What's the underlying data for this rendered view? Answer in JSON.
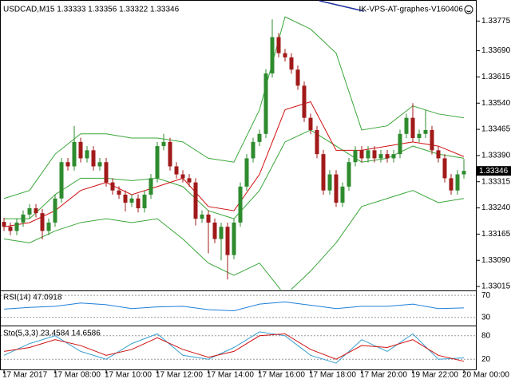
{
  "chart_data": {
    "type": "candlestick",
    "title": "USDCAD,M15  1.33333 1.33356 1.33322 1.33346",
    "watermark": "IK-VPS-AT-graphes-V160406",
    "categories": [
      "17 Mar 2017",
      null,
      null,
      null,
      null,
      null,
      null,
      null,
      "17 Mar 08:00",
      null,
      null,
      null,
      null,
      null,
      null,
      null,
      "17 Mar 10:00",
      null,
      null,
      null,
      null,
      null,
      null,
      null,
      "17 Mar 12:00",
      null,
      null,
      null,
      null,
      null,
      null,
      null,
      "17 Mar 14:00",
      null,
      null,
      null,
      null,
      null,
      null,
      null,
      "17 Mar 16:00",
      null,
      null,
      null,
      null,
      null,
      null,
      null,
      "17 Mar 18:00",
      null,
      null,
      null,
      null,
      null,
      null,
      null,
      "17 Mar 20:00",
      null,
      null,
      null,
      null,
      null,
      null,
      null,
      "19 Mar 22:00",
      null,
      null,
      null,
      null,
      null,
      null,
      null,
      "20 Mar 00:00"
    ],
    "open": [
      1.332,
      1.33186,
      1.33174,
      1.33198,
      1.33221,
      1.33239,
      1.33225,
      1.33174,
      1.33198,
      1.33267,
      1.33371,
      1.33359,
      1.33429,
      1.33382,
      1.33405,
      1.33359,
      1.33371,
      1.33313,
      1.3329,
      1.33278,
      1.33255,
      1.33267,
      1.33239,
      1.33278,
      1.33325,
      1.33417,
      1.33429,
      1.33359,
      1.33336,
      1.33325,
      1.33313,
      1.33209,
      1.33221,
      1.33198,
      1.33151,
      1.33186,
      1.33105,
      1.33198,
      1.33301,
      1.33382,
      1.33429,
      1.33452,
      1.33625,
      1.33729,
      1.33683,
      1.33671,
      1.33636,
      1.3359,
      1.33498,
      1.33463,
      1.33394,
      1.3329,
      1.33336,
      1.33255,
      1.33301,
      1.33371,
      1.33405,
      1.33382,
      1.33405,
      1.33382,
      1.33394,
      1.33382,
      1.33394,
      1.33452,
      1.33498,
      1.3344,
      1.33452,
      1.33463,
      1.33405,
      1.33382,
      1.33325,
      1.3329,
      1.33336
    ],
    "high": [
      1.33212,
      1.33198,
      1.3321,
      1.33233,
      1.33251,
      1.33251,
      1.33237,
      1.3321,
      1.33279,
      1.33383,
      1.33383,
      1.33475,
      1.33441,
      1.33417,
      1.33417,
      1.33383,
      1.33383,
      1.33325,
      1.33302,
      1.3329,
      1.33279,
      1.33279,
      1.3329,
      1.33337,
      1.33429,
      1.33452,
      1.33441,
      1.33371,
      1.33348,
      1.33337,
      1.33325,
      1.33233,
      1.33233,
      1.3321,
      1.33198,
      1.33198,
      1.3321,
      1.33313,
      1.33394,
      1.33441,
      1.33464,
      1.33637,
      1.3378,
      1.33741,
      1.33695,
      1.33683,
      1.33648,
      1.33602,
      1.3351,
      1.33475,
      1.33406,
      1.33348,
      1.33348,
      1.33313,
      1.33383,
      1.33417,
      1.33417,
      1.33417,
      1.33417,
      1.33406,
      1.33406,
      1.33406,
      1.33464,
      1.3351,
      1.3354,
      1.33464,
      1.3352,
      1.33475,
      1.33417,
      1.33394,
      1.33337,
      1.33348,
      1.3338
    ],
    "low": [
      1.33174,
      1.33162,
      1.33162,
      1.33186,
      1.33209,
      1.33213,
      1.3315,
      1.33162,
      1.33186,
      1.33255,
      1.33347,
      1.33347,
      1.3337,
      1.3337,
      1.33347,
      1.33347,
      1.33301,
      1.33278,
      1.33266,
      1.3323,
      1.33243,
      1.33227,
      1.33227,
      1.33266,
      1.33313,
      1.33405,
      1.33347,
      1.33324,
      1.33313,
      1.33301,
      1.3319,
      1.33197,
      1.3311,
      1.33139,
      1.3309,
      1.33035,
      1.33093,
      1.33186,
      1.33289,
      1.3337,
      1.33417,
      1.3344,
      1.33613,
      1.33671,
      1.33659,
      1.33624,
      1.33578,
      1.33486,
      1.33451,
      1.33382,
      1.33278,
      1.33278,
      1.33243,
      1.33243,
      1.33289,
      1.33359,
      1.3337,
      1.3337,
      1.3337,
      1.3337,
      1.3337,
      1.3337,
      1.33382,
      1.3344,
      1.33428,
      1.33428,
      1.3344,
      1.33393,
      1.3337,
      1.33313,
      1.33278,
      1.33278,
      1.33324
    ],
    "close": [
      1.33186,
      1.33174,
      1.33198,
      1.33221,
      1.33239,
      1.33225,
      1.33174,
      1.33198,
      1.33267,
      1.33371,
      1.33359,
      1.33429,
      1.33382,
      1.33405,
      1.33359,
      1.33371,
      1.33313,
      1.3329,
      1.33278,
      1.33255,
      1.33267,
      1.33239,
      1.33278,
      1.33325,
      1.33417,
      1.33429,
      1.33359,
      1.33336,
      1.33325,
      1.33313,
      1.33209,
      1.33221,
      1.33198,
      1.33151,
      1.33186,
      1.33105,
      1.33198,
      1.33301,
      1.33382,
      1.33429,
      1.33452,
      1.33625,
      1.33729,
      1.33683,
      1.33671,
      1.33636,
      1.3359,
      1.33498,
      1.33463,
      1.33394,
      1.3329,
      1.33336,
      1.33255,
      1.33301,
      1.33371,
      1.33405,
      1.33382,
      1.33405,
      1.33382,
      1.33394,
      1.33382,
      1.33394,
      1.33452,
      1.33498,
      1.3344,
      1.33452,
      1.33463,
      1.33405,
      1.33382,
      1.33325,
      1.3329,
      1.33336,
      1.33346
    ],
    "up_color": "#2e8b2e",
    "down_color": "#a11a1a",
    "ylim": [
      1.33006,
      1.33833
    ],
    "yticks": [
      1.33775,
      {
        "value": 1.3369,
        "label": "1.33690"
      },
      1.33615,
      {
        "value": 1.3354,
        "label": "1.33540"
      },
      1.33465,
      {
        "value": 1.3339,
        "label": "1.33390"
      },
      1.33315,
      {
        "value": 1.3324,
        "label": "1.33240"
      },
      1.33165,
      {
        "value": 1.3309,
        "label": "1.33090"
      },
      1.33015
    ],
    "last_price": 1.33346,
    "overlay_x": [
      0,
      4,
      8,
      12,
      16,
      20,
      24,
      28,
      32,
      36,
      40,
      44,
      48,
      52,
      56,
      60,
      64,
      68,
      72
    ],
    "overlays": [
      {
        "color": "#3aa63a",
        "values": [
          1.33267,
          1.3329,
          1.33394,
          1.33452,
          1.33452,
          1.3344,
          1.3344,
          1.33429,
          1.33382,
          1.33371,
          1.33521,
          1.33787,
          1.33752,
          1.33683,
          1.33463,
          1.33475,
          1.33532,
          1.33509,
          1.33498
        ]
      },
      {
        "color": "#3aa63a",
        "values": [
          1.33209,
          1.33209,
          1.33278,
          1.33325,
          1.33325,
          1.33318,
          1.33325,
          1.33301,
          1.33232,
          1.33209,
          1.3329,
          1.33429,
          1.33463,
          1.33417,
          1.33371,
          1.33382,
          1.33417,
          1.33394,
          1.33382
        ]
      },
      {
        "color": "#3aa63a",
        "values": [
          1.33151,
          1.3314,
          1.33174,
          1.33198,
          1.33209,
          1.33198,
          1.33209,
          1.33151,
          1.33082,
          1.33047,
          1.33082,
          1.3299,
          1.33059,
          1.3314,
          1.33244,
          1.33267,
          1.3329,
          1.33255,
          1.33267
        ]
      },
      {
        "color": "#d01010",
        "values": [
          1.33186,
          1.33198,
          1.33232,
          1.3329,
          1.33313,
          1.33278,
          1.33301,
          1.33325,
          1.33244,
          1.33232,
          1.33336,
          1.33521,
          1.33544,
          1.33405,
          1.33405,
          1.33417,
          1.33429,
          1.33417,
          1.33387
        ]
      }
    ],
    "panels": [
      {
        "type": "line",
        "title": "RSI(14) 47.0918",
        "ylim": [
          18,
          76
        ],
        "yticks": [
          70,
          30
        ],
        "series": [
          {
            "color": "#1e7fd8",
            "values": [
              45,
              48,
              50,
              56,
              53,
              46,
              49,
              50,
              44,
              42,
              54,
              58,
              52,
              46,
              50,
              50,
              54,
              46,
              47.0918
            ]
          }
        ]
      },
      {
        "type": "line",
        "title": "Sto(5,3,3) 23.4584 14.6586",
        "ylim": [
          0,
          100
        ],
        "yticks": [
          80,
          20
        ],
        "series": [
          {
            "color": "#3aa0d0",
            "values": [
              30,
              60,
              80,
              40,
              20,
              60,
              85,
              30,
              20,
              50,
              90,
              80,
              30,
              10,
              70,
              40,
              85,
              20,
              23.4584
            ]
          },
          {
            "color": "#d01010",
            "values": [
              40,
              50,
              70,
              55,
              30,
              45,
              75,
              45,
              25,
              40,
              80,
              85,
              45,
              20,
              55,
              50,
              70,
              30,
              14.6586
            ]
          }
        ]
      }
    ]
  }
}
